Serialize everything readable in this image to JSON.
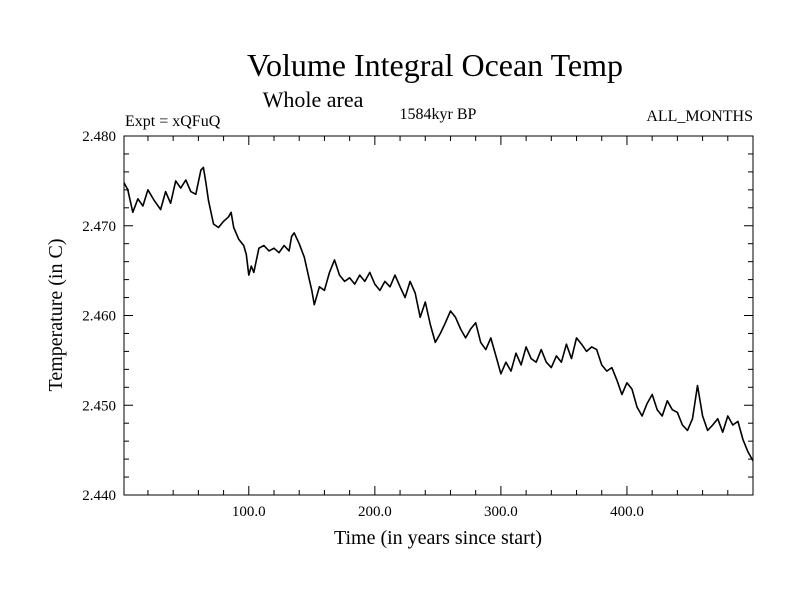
{
  "chart_data": {
    "type": "line",
    "title": "Volume Integral Ocean Temp",
    "subtitle": "Whole area",
    "left_label": "Expt = xQFuQ",
    "center_label": "1584kyr BP",
    "right_label": "ALL_MONTHS",
    "xlabel": "Time (in years since start)",
    "ylabel": "Temperature (in C)",
    "xlim": [
      1,
      500
    ],
    "ylim": [
      2.44,
      2.48
    ],
    "x_ticks": [
      100,
      200,
      300,
      400
    ],
    "x_tick_labels": [
      "100.0",
      "200.0",
      "300.0",
      "400.0"
    ],
    "y_ticks": [
      2.44,
      2.45,
      2.46,
      2.47,
      2.48
    ],
    "y_tick_labels": [
      "2.440",
      "2.450",
      "2.460",
      "2.470",
      "2.480"
    ],
    "grid": false,
    "series": [
      {
        "name": "Temperature",
        "color": "#000000",
        "x": [
          1,
          4,
          8,
          12,
          16,
          20,
          25,
          30,
          34,
          38,
          42,
          46,
          50,
          54,
          58,
          62,
          64,
          66,
          68,
          72,
          76,
          80,
          84,
          86,
          88,
          92,
          96,
          98,
          100,
          102,
          104,
          108,
          112,
          116,
          120,
          124,
          128,
          132,
          134,
          136,
          140,
          144,
          148,
          150,
          152,
          156,
          160,
          164,
          168,
          172,
          176,
          180,
          184,
          188,
          192,
          196,
          200,
          204,
          208,
          212,
          216,
          220,
          224,
          228,
          232,
          236,
          240,
          244,
          248,
          252,
          256,
          260,
          264,
          268,
          272,
          276,
          280,
          284,
          288,
          292,
          296,
          300,
          304,
          308,
          312,
          316,
          320,
          324,
          328,
          332,
          336,
          340,
          344,
          348,
          352,
          356,
          360,
          364,
          368,
          372,
          376,
          380,
          384,
          388,
          392,
          396,
          400,
          404,
          408,
          412,
          416,
          420,
          424,
          428,
          432,
          436,
          440,
          444,
          448,
          452,
          456,
          460,
          464,
          468,
          472,
          476,
          480,
          484,
          488,
          492,
          496,
          500
        ],
        "values": [
          2.4748,
          2.474,
          2.4715,
          2.473,
          2.4722,
          2.474,
          2.4728,
          2.4718,
          2.4738,
          2.4725,
          2.475,
          2.4742,
          2.4751,
          2.4738,
          2.4735,
          2.4762,
          2.4765,
          2.4748,
          2.4728,
          2.4702,
          2.4698,
          2.4705,
          2.471,
          2.4715,
          2.4698,
          2.4685,
          2.4678,
          2.4668,
          2.4645,
          2.4655,
          2.4648,
          2.4675,
          2.4678,
          2.4672,
          2.4675,
          2.467,
          2.4678,
          2.4672,
          2.4688,
          2.4692,
          2.468,
          2.4665,
          2.464,
          2.4628,
          2.4612,
          2.4632,
          2.4628,
          2.4648,
          2.4662,
          2.4645,
          2.4638,
          2.4642,
          2.4635,
          2.4645,
          2.4638,
          2.4648,
          2.4635,
          2.4628,
          2.4638,
          2.4632,
          2.4645,
          2.4632,
          2.462,
          2.4638,
          2.4625,
          2.4598,
          2.4615,
          2.459,
          2.457,
          2.458,
          2.4592,
          2.4605,
          2.4598,
          2.4585,
          2.4575,
          2.4585,
          2.4592,
          2.457,
          2.4562,
          2.4575,
          2.4555,
          2.4535,
          2.4548,
          2.4538,
          2.4558,
          2.4545,
          2.4565,
          2.4552,
          2.4548,
          2.4562,
          2.4548,
          2.4542,
          2.4555,
          2.4548,
          2.4568,
          2.4552,
          2.4575,
          2.4568,
          2.456,
          2.4565,
          2.4562,
          2.4545,
          2.4538,
          2.4542,
          2.4528,
          2.4512,
          2.4525,
          2.4518,
          2.4498,
          2.4488,
          2.4502,
          2.4512,
          2.4495,
          2.4488,
          2.4505,
          2.4495,
          2.4492,
          2.4478,
          2.4472,
          2.4485,
          2.4522,
          2.4488,
          2.4472,
          2.4478,
          2.4485,
          2.447,
          2.4488,
          2.4478,
          2.4482,
          2.4462,
          2.4448,
          2.4438
        ]
      }
    ]
  }
}
